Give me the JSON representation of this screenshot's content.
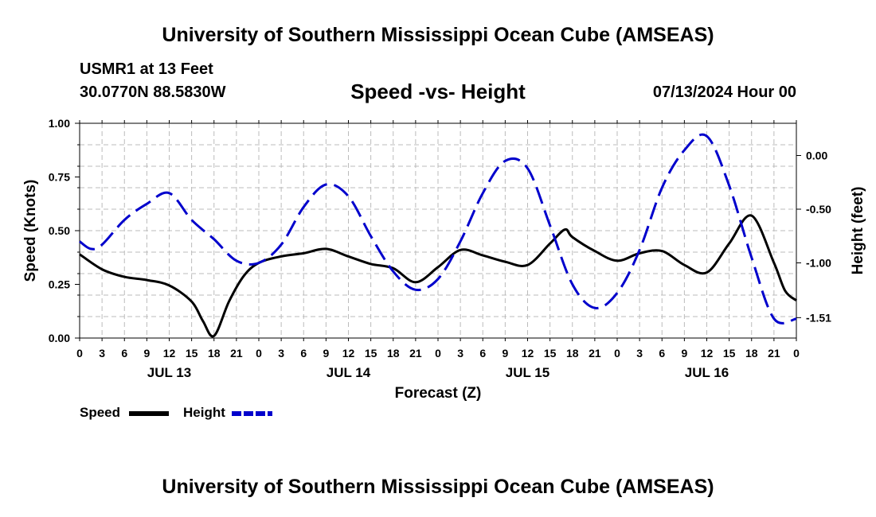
{
  "header": {
    "title": "University of Southern Mississippi Ocean Cube (AMSEAS)",
    "station": "USMR1 at 13 Feet",
    "coords": "30.0770N  88.5830W",
    "chart_title": "Speed -vs- Height",
    "run_time": "07/13/2024 Hour 00"
  },
  "footer": {
    "title": "University of Southern Mississippi Ocean Cube (AMSEAS)"
  },
  "chart_data": {
    "type": "line",
    "title": "Speed -vs- Height",
    "xlabel": "Forecast (Z)",
    "ylabel": "Speed (Knots)",
    "y2label": "Height (feet)",
    "xlim": [
      0,
      96
    ],
    "ylim": [
      0,
      1.0
    ],
    "y2lim": [
      -1.7,
      0.3
    ],
    "grid": true,
    "x_tick_labels": [
      "0",
      "3",
      "6",
      "9",
      "12",
      "15",
      "18",
      "21",
      "0",
      "3",
      "6",
      "9",
      "12",
      "15",
      "18",
      "21",
      "0",
      "3",
      "6",
      "9",
      "12",
      "15",
      "18",
      "21",
      "0",
      "3",
      "6",
      "9",
      "12",
      "15",
      "18",
      "21",
      "0"
    ],
    "day_labels": [
      "JUL 13",
      "JUL 14",
      "JUL 15",
      "JUL 16"
    ],
    "y_ticks": [
      "1.00",
      "0.75",
      "0.50",
      "0.25",
      "0.00"
    ],
    "y2_ticks": [
      "0.00",
      "-0.50",
      "-1.00",
      "-1.51"
    ],
    "legend": [
      "Speed",
      "Height"
    ],
    "series": [
      {
        "name": "Speed",
        "axis": "left",
        "color": "#000000",
        "x": [
          0,
          3,
          6,
          9,
          12,
          15,
          16.5,
          18,
          20,
          22,
          24,
          27,
          30,
          33,
          36,
          39,
          42,
          45,
          48,
          51,
          54,
          57,
          60,
          63,
          65,
          66,
          69,
          72,
          75,
          78,
          81,
          84,
          87,
          90,
          93,
          94.5,
          96
        ],
        "values": [
          0.39,
          0.32,
          0.285,
          0.27,
          0.245,
          0.17,
          0.08,
          0.01,
          0.17,
          0.29,
          0.35,
          0.38,
          0.395,
          0.415,
          0.38,
          0.345,
          0.325,
          0.26,
          0.33,
          0.41,
          0.385,
          0.355,
          0.34,
          0.44,
          0.505,
          0.47,
          0.405,
          0.36,
          0.395,
          0.405,
          0.34,
          0.305,
          0.44,
          0.57,
          0.35,
          0.22,
          0.175
        ]
      },
      {
        "name": "Height",
        "axis": "right",
        "color": "#0000cc",
        "dashed": true,
        "x": [
          0,
          1.5,
          3,
          6,
          9,
          12,
          15,
          18,
          21,
          24,
          27,
          30,
          33,
          36,
          39,
          42,
          45,
          48,
          51,
          54,
          57,
          60,
          63,
          66,
          69,
          72,
          75,
          78,
          81,
          84,
          87,
          90,
          93,
          96
        ],
        "values": [
          -0.8,
          -0.87,
          -0.83,
          -0.6,
          -0.45,
          -0.35,
          -0.6,
          -0.78,
          -0.98,
          -1.0,
          -0.83,
          -0.48,
          -0.27,
          -0.38,
          -0.75,
          -1.08,
          -1.25,
          -1.15,
          -0.8,
          -0.35,
          -0.05,
          -0.12,
          -0.65,
          -1.2,
          -1.42,
          -1.28,
          -0.88,
          -0.3,
          0.05,
          0.18,
          -0.28,
          -0.95,
          -1.52,
          -1.52
        ]
      }
    ]
  }
}
